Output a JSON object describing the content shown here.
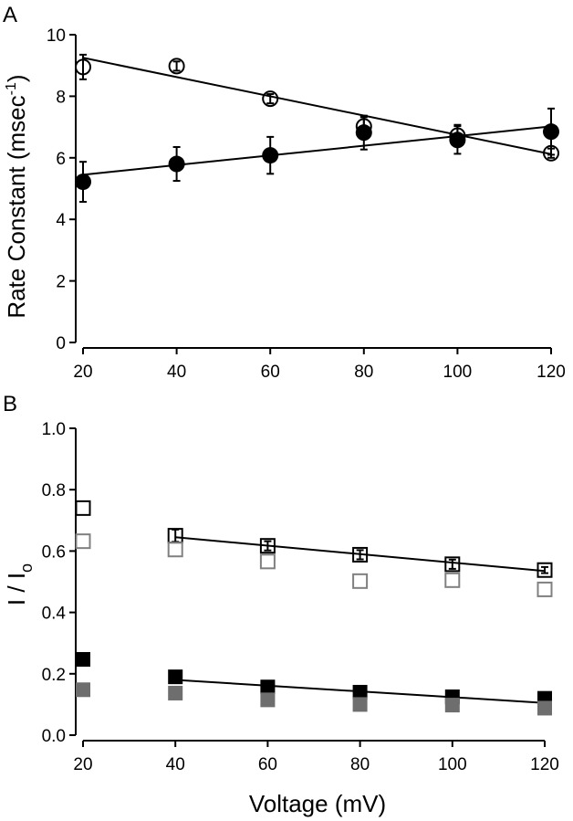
{
  "chart_data": [
    {
      "panel": "A",
      "type": "scatter",
      "xlabel": "",
      "ylabel": "Rate Constant (msec",
      "ylabel_sup": "-1",
      "ylabel_close": ")",
      "xlim": [
        20,
        120
      ],
      "ylim": [
        0,
        10
      ],
      "x_ticks": [
        20,
        40,
        60,
        80,
        100,
        120
      ],
      "x_tick_labels": [
        "20",
        "40",
        "60",
        "80",
        "100",
        "120"
      ],
      "y_ticks": [
        0,
        2,
        4,
        6,
        8,
        10
      ],
      "y_tick_labels": [
        "0",
        "2",
        "4",
        "6",
        "8",
        "10"
      ],
      "series": [
        {
          "name": "open circles",
          "marker": "circle-open",
          "color": "#000000",
          "x": [
            20,
            40,
            60,
            80,
            100,
            120
          ],
          "y": [
            8.95,
            8.98,
            7.92,
            7.02,
            6.72,
            6.15
          ],
          "err": [
            0.4,
            0.15,
            0.15,
            0.3,
            0.35,
            0.15
          ],
          "fit": [
            [
              20,
              9.25
            ],
            [
              120,
              6.12
            ]
          ]
        },
        {
          "name": "filled circles",
          "marker": "circle-filled",
          "color": "#000000",
          "x": [
            20,
            40,
            60,
            80,
            100,
            120
          ],
          "y": [
            5.22,
            5.8,
            6.08,
            6.82,
            6.58,
            6.85
          ],
          "err": [
            0.65,
            0.55,
            0.6,
            0.55,
            0.45,
            0.75
          ],
          "fit": [
            [
              20,
              5.45
            ],
            [
              120,
              7.02
            ]
          ]
        }
      ]
    },
    {
      "panel": "B",
      "type": "scatter",
      "xlabel": "Voltage (mV)",
      "ylabel": "I / I",
      "ylabel_sub": "o",
      "xlim": [
        20,
        120
      ],
      "ylim": [
        0,
        1.0
      ],
      "x_ticks": [
        20,
        40,
        60,
        80,
        100,
        120
      ],
      "x_tick_labels": [
        "20",
        "40",
        "60",
        "80",
        "100",
        "120"
      ],
      "y_ticks": [
        0.0,
        0.2,
        0.4,
        0.6,
        0.8,
        1.0
      ],
      "y_tick_labels": [
        "0.0",
        "0.2",
        "0.4",
        "0.6",
        "0.8",
        "1.0"
      ],
      "series": [
        {
          "name": "open black squares",
          "marker": "square-open",
          "color": "#000000",
          "x": [
            20,
            40,
            60,
            80,
            100,
            120
          ],
          "y": [
            0.74,
            0.65,
            0.617,
            0.588,
            0.557,
            0.538
          ],
          "err": [
            0.0,
            0.02,
            0.015,
            0.015,
            0.015,
            0.01
          ],
          "fit": [
            [
              40,
              0.645
            ],
            [
              120,
              0.535
            ]
          ]
        },
        {
          "name": "open gray squares",
          "marker": "square-open",
          "color": "#808080",
          "x": [
            20,
            40,
            60,
            80,
            100,
            120
          ],
          "y": [
            0.632,
            0.605,
            0.566,
            0.502,
            0.505,
            0.475
          ]
        },
        {
          "name": "filled black squares",
          "marker": "square-filled",
          "color": "#000000",
          "x": [
            20,
            40,
            60,
            80,
            100,
            120
          ],
          "y": [
            0.247,
            0.19,
            0.157,
            0.14,
            0.125,
            0.12
          ],
          "fit": [
            [
              40,
              0.18
            ],
            [
              120,
              0.105
            ]
          ]
        },
        {
          "name": "filled gray squares",
          "marker": "square-filled",
          "color": "#6e6e6e",
          "x": [
            20,
            40,
            60,
            80,
            100,
            120
          ],
          "y": [
            0.148,
            0.137,
            0.115,
            0.1,
            0.098,
            0.088
          ]
        }
      ]
    }
  ]
}
